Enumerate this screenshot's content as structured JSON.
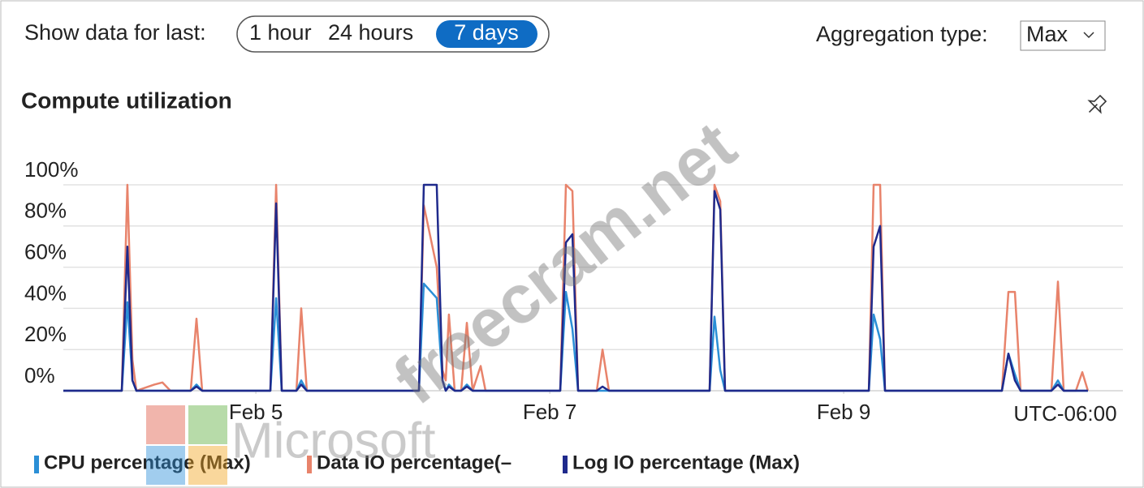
{
  "toolbar": {
    "range_label": "Show data for last:",
    "ranges": [
      "1 hour",
      "24 hours",
      "7 days"
    ],
    "selected": "7 days",
    "aggregation_label": "Aggregation type:",
    "aggregation": "Max"
  },
  "watermark": {
    "site": "freecram.net",
    "logo": "Microsoft"
  },
  "chart_data": {
    "type": "line",
    "title": "Compute utilization",
    "timezone": "UTC-06:00",
    "x": [
      3.69,
      4.088,
      4.126,
      4.16,
      4.187,
      4.309,
      4.364,
      4.419,
      4.557,
      4.596,
      4.635,
      5.099,
      5.138,
      5.176,
      5.276,
      5.309,
      5.347,
      6.11,
      6.143,
      6.231,
      6.27,
      6.292,
      6.314,
      6.353,
      6.397,
      6.436,
      6.475,
      6.53,
      6.563,
      7.071,
      7.11,
      7.154,
      7.193,
      7.32,
      7.359,
      7.403,
      8.088,
      8.121,
      8.16,
      8.193,
      9.171,
      9.204,
      9.248,
      9.281,
      10.077,
      10.121,
      10.165,
      10.204,
      10.414,
      10.458,
      10.497,
      10.58,
      10.624,
      10.662
    ],
    "series": [
      {
        "name": "CPU percentage (Max)",
        "color": "#2b8fd6",
        "values": [
          0,
          0,
          43,
          5,
          0,
          0,
          0,
          0,
          0,
          3,
          0,
          0,
          45,
          0,
          0,
          5,
          0,
          0,
          52,
          45,
          5,
          0,
          3,
          0,
          0,
          3,
          0,
          0,
          0,
          0,
          48,
          30,
          0,
          0,
          0,
          0,
          0,
          36,
          10,
          0,
          0,
          37,
          25,
          0,
          0,
          18,
          8,
          0,
          0,
          5,
          0,
          0,
          0,
          0
        ]
      },
      {
        "name": "Data IO percentage(–",
        "color": "#e8836b",
        "values": [
          0,
          0,
          100,
          15,
          0,
          3,
          4,
          0,
          0,
          35,
          0,
          0,
          100,
          0,
          0,
          40,
          0,
          0,
          90,
          60,
          10,
          5,
          37,
          0,
          0,
          33,
          0,
          12,
          0,
          0,
          100,
          97,
          0,
          0,
          20,
          0,
          0,
          100,
          92,
          0,
          0,
          100,
          100,
          0,
          0,
          48,
          48,
          0,
          0,
          53,
          0,
          0,
          9,
          0
        ]
      },
      {
        "name": "Log IO percentage (Max)",
        "color": "#1f2a8c",
        "values": [
          0,
          0,
          70,
          5,
          0,
          0,
          0,
          0,
          0,
          2,
          0,
          0,
          91,
          0,
          0,
          3,
          0,
          0,
          100,
          100,
          5,
          0,
          2,
          0,
          0,
          2,
          0,
          0,
          0,
          0,
          72,
          76,
          0,
          0,
          2,
          0,
          0,
          97,
          88,
          0,
          0,
          70,
          80,
          0,
          0,
          18,
          5,
          0,
          0,
          3,
          0,
          0,
          0,
          0
        ]
      }
    ],
    "xlim": [
      3.69,
      10.9
    ],
    "xticks": [
      {
        "value": 5,
        "label": "Feb 5"
      },
      {
        "value": 7,
        "label": "Feb 7"
      },
      {
        "value": 9,
        "label": "Feb 9"
      }
    ],
    "ylim": [
      0,
      100
    ],
    "yticks": [
      {
        "value": 0,
        "label": "0%"
      },
      {
        "value": 20,
        "label": "20%"
      },
      {
        "value": 40,
        "label": "40%"
      },
      {
        "value": 60,
        "label": "60%"
      },
      {
        "value": 80,
        "label": "80%"
      },
      {
        "value": 100,
        "label": "100%"
      }
    ],
    "grid": true
  }
}
